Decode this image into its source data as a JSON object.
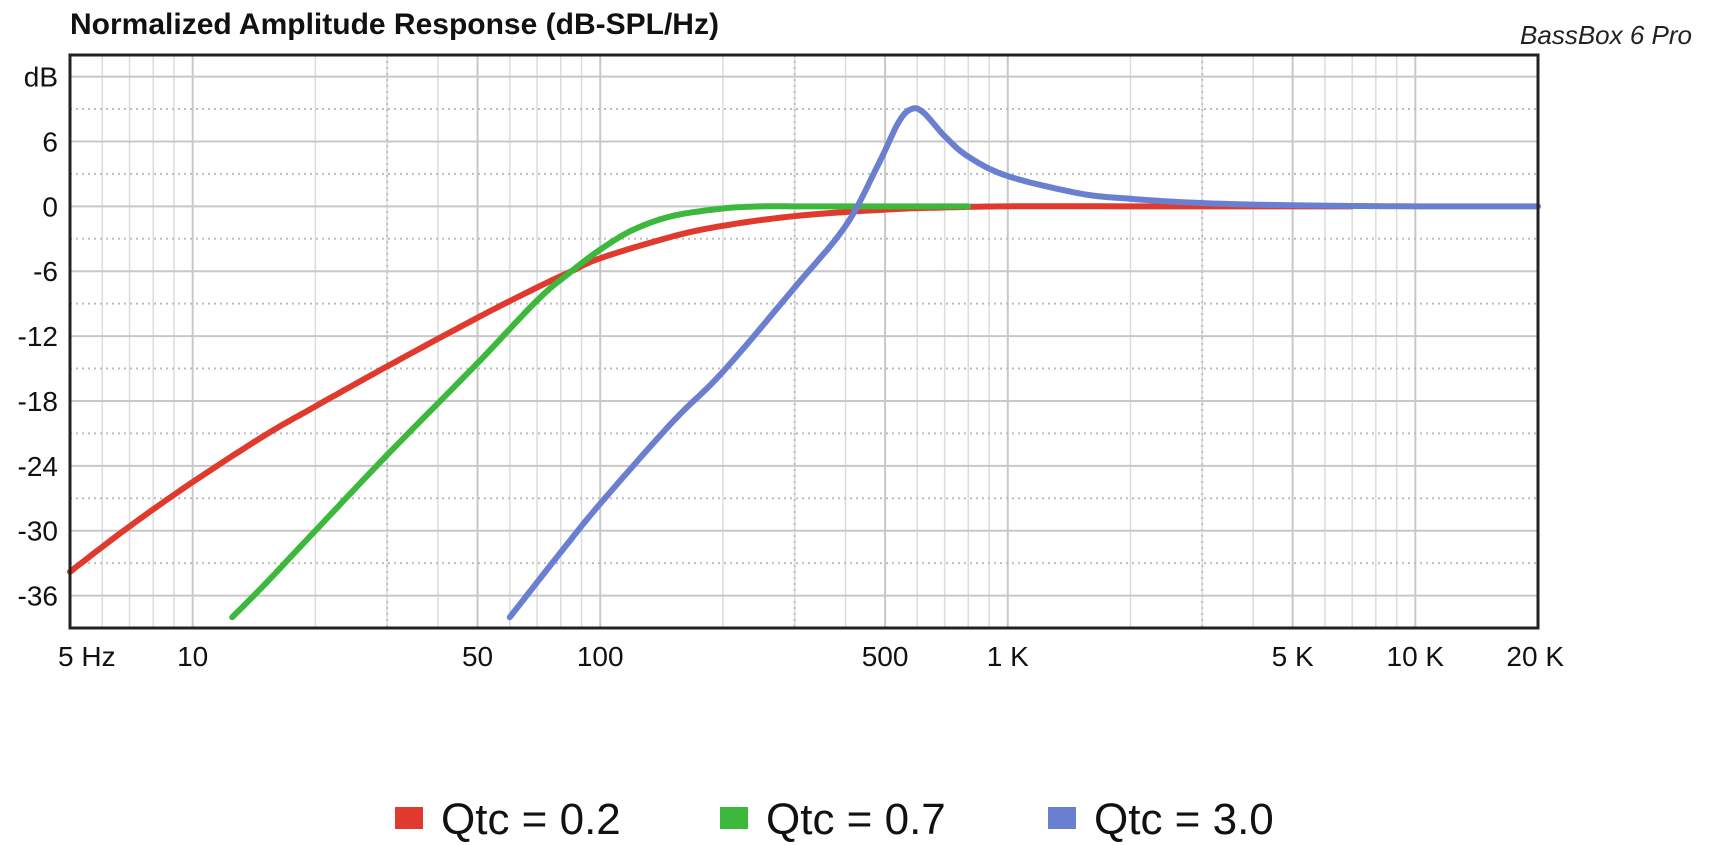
{
  "chart_data": {
    "type": "line",
    "title": "Normalized Amplitude Response (dB-SPL/Hz)",
    "brand": "BassBox 6 Pro",
    "xscale": "log",
    "xlim": [
      5,
      20000
    ],
    "ylim": [
      -39,
      14
    ],
    "y_axis_unit_label": "dB",
    "y_ticks": [
      6,
      0,
      -6,
      -12,
      -18,
      -24,
      -30,
      -36
    ],
    "y_tick_labels": [
      "6",
      "0",
      "-6",
      "-12",
      "-18",
      "-24",
      "-30",
      "-36"
    ],
    "x_ticks": [
      5,
      10,
      50,
      100,
      500,
      1000,
      5000,
      10000,
      20000
    ],
    "x_tick_labels": [
      "5 Hz",
      "10",
      "50",
      "100",
      "500",
      "1 K",
      "5 K",
      "10 K",
      "20 K"
    ],
    "series": [
      {
        "name": "Qtc = 0.2",
        "color": "#e03a2f",
        "x": [
          5,
          7,
          10,
          15,
          20,
          30,
          50,
          70,
          85,
          100,
          150,
          200,
          300,
          500,
          700,
          1000,
          2000,
          5000,
          7000
        ],
        "y": [
          -33.8,
          -29.6,
          -25.5,
          -21.2,
          -18.5,
          -14.8,
          -10.3,
          -7.5,
          -6,
          -4.8,
          -2.8,
          -1.8,
          -0.9,
          -0.3,
          -0.1,
          0,
          0,
          0,
          0
        ]
      },
      {
        "name": "Qtc = 0.7",
        "color": "#3cb83c",
        "x": [
          12.5,
          15,
          20,
          30,
          50,
          70,
          85,
          100,
          120,
          150,
          200,
          250,
          300,
          500,
          800
        ],
        "y": [
          -38,
          -35,
          -30,
          -23,
          -14.5,
          -8.7,
          -6,
          -4,
          -2.2,
          -0.9,
          -0.2,
          0,
          0,
          0,
          0
        ]
      },
      {
        "name": "Qtc = 3.0",
        "color": "#6a7fd0",
        "x": [
          60,
          80,
          100,
          150,
          200,
          300,
          400,
          480,
          540,
          580,
          620,
          700,
          800,
          1000,
          1500,
          2000,
          3000,
          5000,
          10000,
          20000
        ],
        "y": [
          -38,
          -32,
          -27.5,
          -20,
          -15.3,
          -7.5,
          -1.8,
          3.8,
          7.8,
          9,
          8.7,
          6.5,
          4.6,
          2.8,
          1.2,
          0.7,
          0.3,
          0.1,
          0,
          0
        ]
      }
    ],
    "legend_position": "bottom-center",
    "grid": true
  }
}
